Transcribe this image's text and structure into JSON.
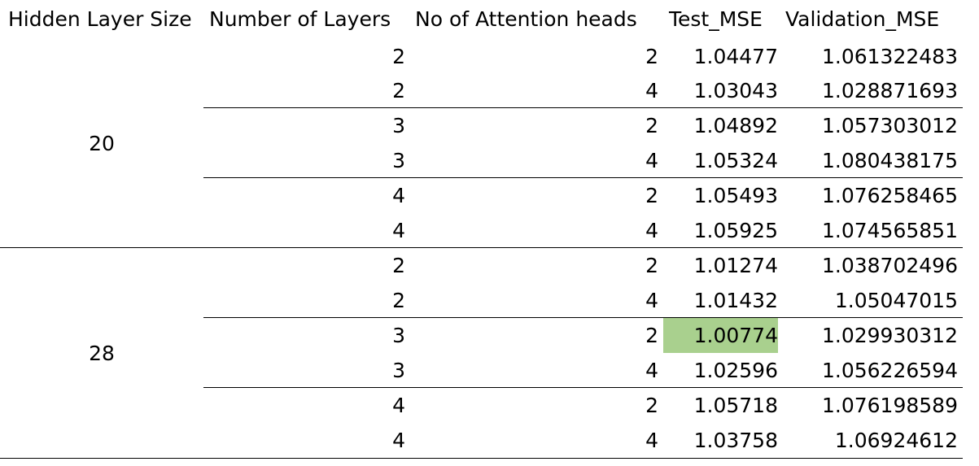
{
  "headers": {
    "hidden_layer_size": "Hidden Layer Size",
    "number_of_layers": "Number of Layers",
    "attention_heads": "No of Attention heads",
    "test_mse": "Test_MSE",
    "validation_mse": "Validation_MSE"
  },
  "groups": [
    {
      "hidden_layer_size": "20",
      "rows": [
        {
          "layers": "2",
          "heads": "2",
          "test_mse": "1.04477",
          "validation_mse": "1.061322483"
        },
        {
          "layers": "2",
          "heads": "4",
          "test_mse": "1.03043",
          "validation_mse": "1.028871693"
        },
        {
          "layers": "3",
          "heads": "2",
          "test_mse": "1.04892",
          "validation_mse": "1.057303012"
        },
        {
          "layers": "3",
          "heads": "4",
          "test_mse": "1.05324",
          "validation_mse": "1.080438175"
        },
        {
          "layers": "4",
          "heads": "2",
          "test_mse": "1.05493",
          "validation_mse": "1.076258465"
        },
        {
          "layers": "4",
          "heads": "4",
          "test_mse": "1.05925",
          "validation_mse": "1.074565851"
        }
      ]
    },
    {
      "hidden_layer_size": "28",
      "rows": [
        {
          "layers": "2",
          "heads": "2",
          "test_mse": "1.01274",
          "validation_mse": "1.038702496"
        },
        {
          "layers": "2",
          "heads": "4",
          "test_mse": "1.01432",
          "validation_mse": "1.05047015"
        },
        {
          "layers": "3",
          "heads": "2",
          "test_mse": "1.00774",
          "validation_mse": "1.029930312"
        },
        {
          "layers": "3",
          "heads": "4",
          "test_mse": "1.02596",
          "validation_mse": "1.056226594"
        },
        {
          "layers": "4",
          "heads": "2",
          "test_mse": "1.05718",
          "validation_mse": "1.076198589"
        },
        {
          "layers": "4",
          "heads": "4",
          "test_mse": "1.03758",
          "validation_mse": "1.06924612"
        }
      ]
    }
  ],
  "highlight_color": "#a9d08e"
}
